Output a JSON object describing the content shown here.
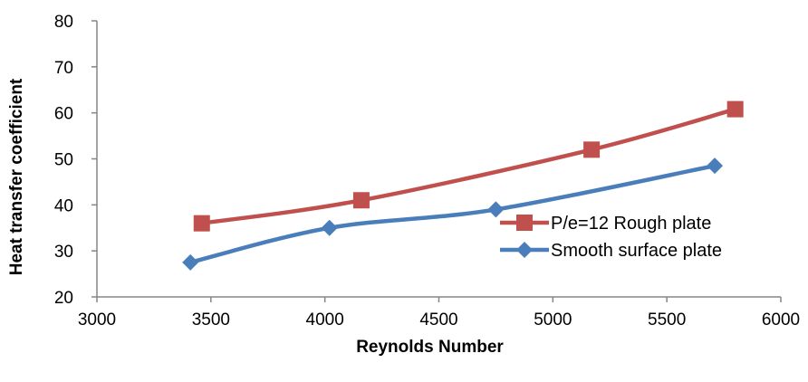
{
  "chart_data": {
    "type": "line",
    "title": "",
    "xlabel": "Reynolds Number",
    "ylabel": "Heat transfer coefficient",
    "xlim": [
      3000,
      6000
    ],
    "ylim": [
      20,
      80
    ],
    "x_ticks": [
      "3000",
      "3500",
      "4000",
      "4500",
      "5000",
      "5500",
      "6000"
    ],
    "y_ticks": [
      "20",
      "30",
      "40",
      "50",
      "60",
      "70",
      "80"
    ],
    "grid": false,
    "legend_position": "right",
    "series": [
      {
        "name": "P/e=12 Rough plate",
        "color": "#c0504d",
        "marker": "square",
        "points": [
          {
            "x": 3460,
            "y": 36
          },
          {
            "x": 4160,
            "y": 41
          },
          {
            "x": 5170,
            "y": 52
          },
          {
            "x": 5800,
            "y": 60.8
          }
        ]
      },
      {
        "name": "Smooth surface plate",
        "color": "#4a7ebb",
        "marker": "diamond",
        "points": [
          {
            "x": 3410,
            "y": 27.5
          },
          {
            "x": 4020,
            "y": 35
          },
          {
            "x": 4750,
            "y": 39
          },
          {
            "x": 5710,
            "y": 48.5
          }
        ]
      }
    ]
  }
}
